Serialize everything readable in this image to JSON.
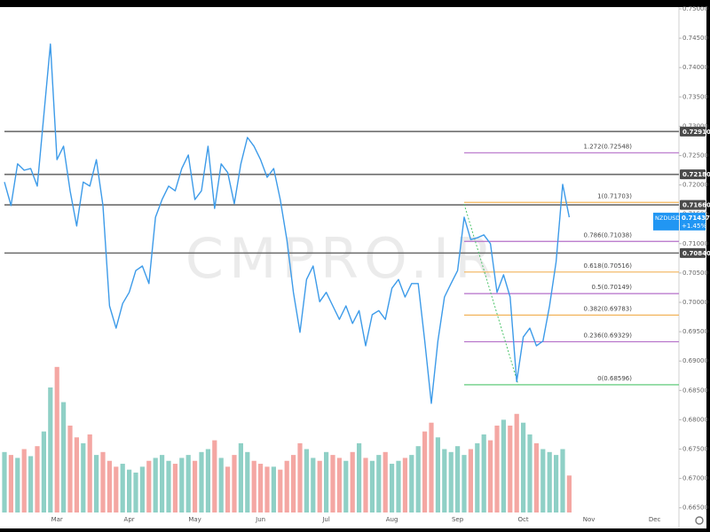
{
  "chart_data": {
    "type": "line",
    "watermark": "CMPRO.IR",
    "categories": [
      null,
      null,
      null,
      null,
      null,
      null,
      null,
      null,
      "Mar",
      null,
      null,
      null,
      null,
      null,
      null,
      null,
      null,
      null,
      null,
      "Apr",
      null,
      null,
      null,
      null,
      null,
      null,
      null,
      null,
      null,
      "May",
      null,
      null,
      null,
      null,
      null,
      null,
      null,
      null,
      null,
      "Jun",
      null,
      null,
      null,
      null,
      null,
      null,
      null,
      null,
      null,
      "Jul",
      null,
      null,
      null,
      null,
      null,
      null,
      null,
      null,
      null,
      "Aug",
      null,
      null,
      null,
      null,
      null,
      null,
      null,
      null,
      null,
      "Sep",
      null,
      null,
      null,
      null,
      null,
      null,
      null,
      null,
      null,
      "Oct",
      null,
      null,
      null,
      null,
      null,
      null,
      null,
      null,
      null,
      "Nov",
      null,
      null,
      null,
      null,
      null,
      null,
      null,
      null,
      null,
      "Dec",
      null,
      null,
      null
    ],
    "series": [
      {
        "name": "NZDUSD",
        "color": "#3d9be9",
        "values": [
          0.7205,
          0.7165,
          0.7236,
          0.7225,
          0.7228,
          0.7198,
          0.7319,
          0.744,
          0.7243,
          0.7266,
          0.719,
          0.713,
          0.7205,
          0.7198,
          0.7243,
          0.7165,
          0.6994,
          0.6956,
          0.6998,
          0.7017,
          0.7054,
          0.7062,
          0.7032,
          0.7145,
          0.7175,
          0.7198,
          0.719,
          0.7228,
          0.7251,
          0.7175,
          0.719,
          0.7266,
          0.716,
          0.7236,
          0.7221,
          0.7168,
          0.7236,
          0.7281,
          0.7266,
          0.7243,
          0.7213,
          0.7228,
          0.7175,
          0.7107,
          0.7017,
          0.6949,
          0.7039,
          0.7062,
          0.7001,
          0.7017,
          0.6994,
          0.6971,
          0.6994,
          0.6964,
          0.6986,
          0.6926,
          0.6979,
          0.6986,
          0.6971,
          0.7024,
          0.7039,
          0.7009,
          0.7032,
          0.7032,
          0.6934,
          0.6828,
          0.6934,
          0.7009,
          0.7032,
          0.7054,
          0.7145,
          0.7107,
          0.711,
          0.7115,
          0.71,
          0.7017,
          0.7047,
          0.7009,
          0.6865,
          0.6941,
          0.6956,
          0.6926,
          0.6934,
          0.6994,
          0.7069,
          0.7201,
          0.7145,
          null,
          null,
          null,
          null,
          null,
          null,
          null,
          null,
          null,
          null,
          null,
          null,
          null,
          null,
          null,
          null
        ]
      }
    ],
    "volume": {
      "up_color": "#8fd0c6",
      "down_color": "#f4a7a3",
      "values": [
        0.6745,
        0.674,
        0.6735,
        0.675,
        0.6738,
        0.6755,
        0.678,
        0.6855,
        0.689,
        0.683,
        0.679,
        0.677,
        0.676,
        0.6775,
        0.674,
        0.6745,
        0.673,
        0.672,
        0.6725,
        0.6715,
        0.671,
        0.672,
        0.673,
        0.6735,
        0.674,
        0.673,
        0.6725,
        0.6735,
        0.674,
        0.673,
        0.6745,
        0.675,
        0.6765,
        0.6735,
        0.672,
        0.674,
        0.676,
        0.6745,
        0.673,
        0.6725,
        0.672,
        0.672,
        0.6715,
        0.673,
        0.674,
        0.676,
        0.675,
        0.6735,
        0.673,
        0.6745,
        0.674,
        0.6735,
        0.673,
        0.6745,
        0.676,
        0.6735,
        0.673,
        0.674,
        0.6745,
        0.6725,
        0.673,
        0.6735,
        0.674,
        0.6755,
        0.678,
        0.6795,
        0.677,
        0.675,
        0.6745,
        0.6755,
        0.674,
        0.675,
        0.676,
        0.6775,
        0.6765,
        0.679,
        0.68,
        0.679,
        0.681,
        0.6795,
        0.6775,
        0.676,
        0.675,
        0.6745,
        0.674,
        0.675,
        0.6705,
        null,
        null,
        null,
        null,
        null,
        null,
        null,
        null,
        null,
        null,
        null,
        null,
        null,
        null,
        null,
        null
      ]
    },
    "ylim": [
      0.6642,
      0.7503
    ],
    "yticks": [
      {
        "value": 0.75,
        "label": "0.75000"
      },
      {
        "value": 0.745,
        "label": "0.74500"
      },
      {
        "value": 0.74,
        "label": "0.74000"
      },
      {
        "value": 0.735,
        "label": "0.73500"
      },
      {
        "value": 0.73,
        "label": "0.73000"
      },
      {
        "value": 0.725,
        "label": "0.72500"
      },
      {
        "value": 0.72,
        "label": "0.72000"
      },
      {
        "value": 0.715,
        "label": "0.71500"
      },
      {
        "value": 0.71,
        "label": "0.71000"
      },
      {
        "value": 0.705,
        "label": "0.70500"
      },
      {
        "value": 0.7,
        "label": "0.70000"
      },
      {
        "value": 0.695,
        "label": "0.69500"
      },
      {
        "value": 0.69,
        "label": "0.69000"
      },
      {
        "value": 0.685,
        "label": "0.68500"
      },
      {
        "value": 0.68,
        "label": "0.68000"
      },
      {
        "value": 0.675,
        "label": "0.67500"
      },
      {
        "value": 0.67,
        "label": "0.67000"
      },
      {
        "value": 0.665,
        "label": "0.66500"
      }
    ],
    "levels": [
      {
        "value": 0.7291,
        "label": "0.72910"
      },
      {
        "value": 0.7218,
        "label": "0.72180"
      },
      {
        "value": 0.7166,
        "label": "0.71660"
      },
      {
        "value": 0.7084,
        "label": "0.70840"
      }
    ],
    "fib": [
      {
        "value": 0.72548,
        "label": "1.272(0.72548)",
        "color": "#b46fc8"
      },
      {
        "value": 0.71703,
        "label": "1(0.71703)",
        "color": "#f2b45a"
      },
      {
        "value": 0.71038,
        "label": "0.786(0.71038)",
        "color": "#b46fc8"
      },
      {
        "value": 0.70516,
        "label": "0.618(0.70516)",
        "color": "#f2b45a"
      },
      {
        "value": 0.70149,
        "label": "0.5(0.70149)",
        "color": "#b46fc8"
      },
      {
        "value": 0.69783,
        "label": "0.382(0.69783)",
        "color": "#f2b45a"
      },
      {
        "value": 0.69329,
        "label": "0.236(0.69329)",
        "color": "#b46fc8"
      },
      {
        "value": 0.68596,
        "label": "0(0.68596)",
        "color": "#4cc46a"
      }
    ],
    "last_price": {
      "name": "NZDUSD",
      "value": 0.71437,
      "label": "0.71437",
      "change": "+1.45%",
      "color": "#2196f3"
    }
  }
}
